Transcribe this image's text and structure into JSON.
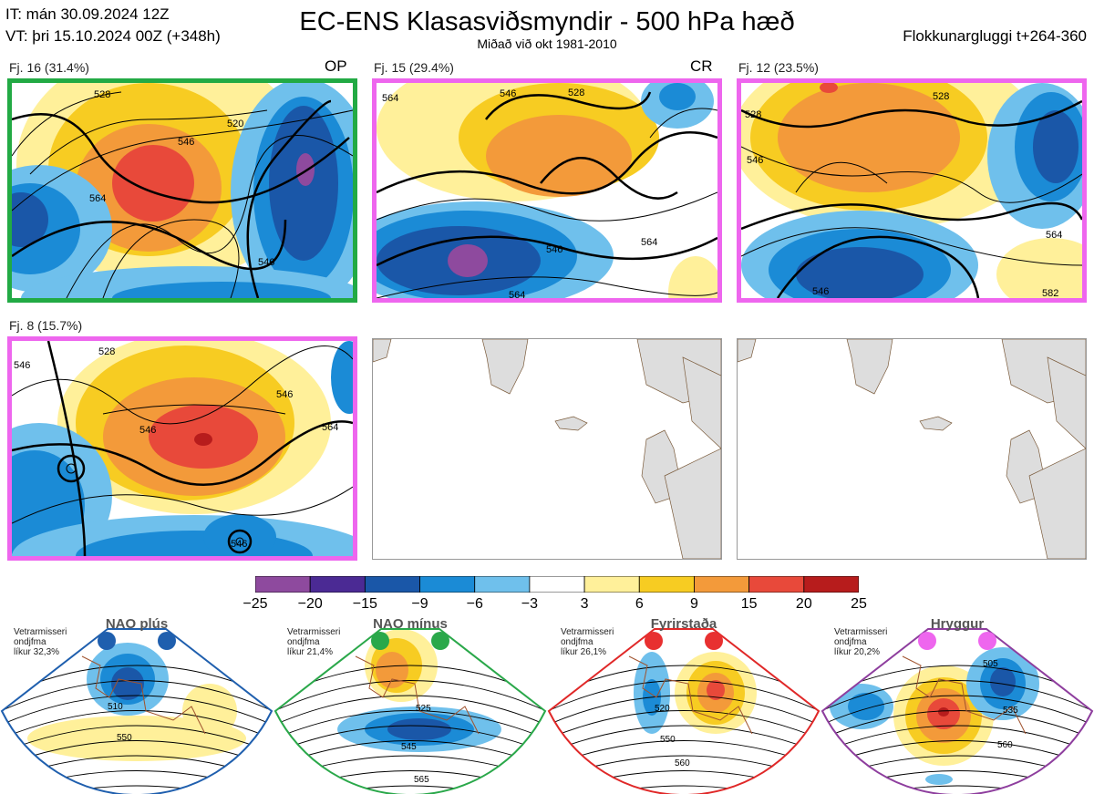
{
  "header": {
    "it_line": "IT: mán 30.09.2024 12Z",
    "vt_line": "VT: þri 15.10.2024 00Z  (+348h)",
    "title": "EC-ENS Klasasviðsmyndir - 500 hPa hæð",
    "subtitle": "Miðað við okt 1981-2010",
    "window": "Flokkunargluggi t+264-360"
  },
  "panels": [
    {
      "label": "Fj. 16 (31.4%)",
      "tag": "OP",
      "border_color": "#22aa44",
      "contour_labels": [
        "528",
        "520",
        "546",
        "564",
        "546",
        "546",
        "54"
      ]
    },
    {
      "label": "Fj. 15 (29.4%)",
      "tag": "CR",
      "border_color": "#ee66ee",
      "contour_labels": [
        "564",
        "528",
        "546",
        "528",
        "546",
        "546",
        "546",
        "564",
        "564"
      ]
    },
    {
      "label": "Fj. 12 (23.5%)",
      "tag": "",
      "border_color": "#ee66ee",
      "contour_labels": [
        "528",
        "528",
        "546",
        "546",
        "564",
        "546",
        "54",
        "582",
        "54"
      ]
    },
    {
      "label": "Fj. 8 (15.7%)",
      "tag": "",
      "border_color": "#ee66ee",
      "contour_labels": [
        "546",
        "528",
        "546",
        "564",
        "546",
        "546",
        "546",
        "54",
        "564",
        "546"
      ]
    },
    {
      "label": "",
      "tag": "",
      "border_color": "#999999",
      "contour_labels": []
    },
    {
      "label": "",
      "tag": "",
      "border_color": "#999999",
      "contour_labels": []
    }
  ],
  "colorbar": {
    "ticks": [
      "−25",
      "−20",
      "−15",
      "−9",
      "−6",
      "−3",
      "3",
      "6",
      "9",
      "15",
      "20",
      "25"
    ],
    "colors": [
      "#8e4a9e",
      "#4b2a94",
      "#1a57a8",
      "#1b8bd6",
      "#6fc0ec",
      "#ffffff",
      "#fff09a",
      "#f7cc22",
      "#f39a3a",
      "#e8493a",
      "#b71c1c"
    ]
  },
  "regimes": [
    {
      "name": "NAO plús",
      "note": [
        "Vetrarmisseri",
        "ondjfma",
        "líkur 32,3%"
      ],
      "accent": "#1f5fae",
      "dot_color": "#1f5fae",
      "contour_labels": [
        "510",
        "550"
      ]
    },
    {
      "name": "NAO mínus",
      "note": [
        "Vetrarmisseri",
        "ondjfma",
        "líkur 21,4%"
      ],
      "accent": "#2aa84a",
      "dot_color": "#2aa84a",
      "contour_labels": [
        "525",
        "545",
        "565"
      ]
    },
    {
      "name": "Fyrirstaða",
      "note": [
        "Vetrarmisseri",
        "ondjfma",
        "líkur 26,1%"
      ],
      "accent": "#e02828",
      "dot_color": "#e83030",
      "contour_labels": [
        "520",
        "550",
        "560"
      ]
    },
    {
      "name": "Hryggur",
      "note": [
        "Vetrarmisseri",
        "ondjfma",
        "líkur 20,2%"
      ],
      "accent": "#8e3e9e",
      "dot_color": "#ee66ee",
      "contour_labels": [
        "505",
        "535",
        "560"
      ]
    }
  ]
}
